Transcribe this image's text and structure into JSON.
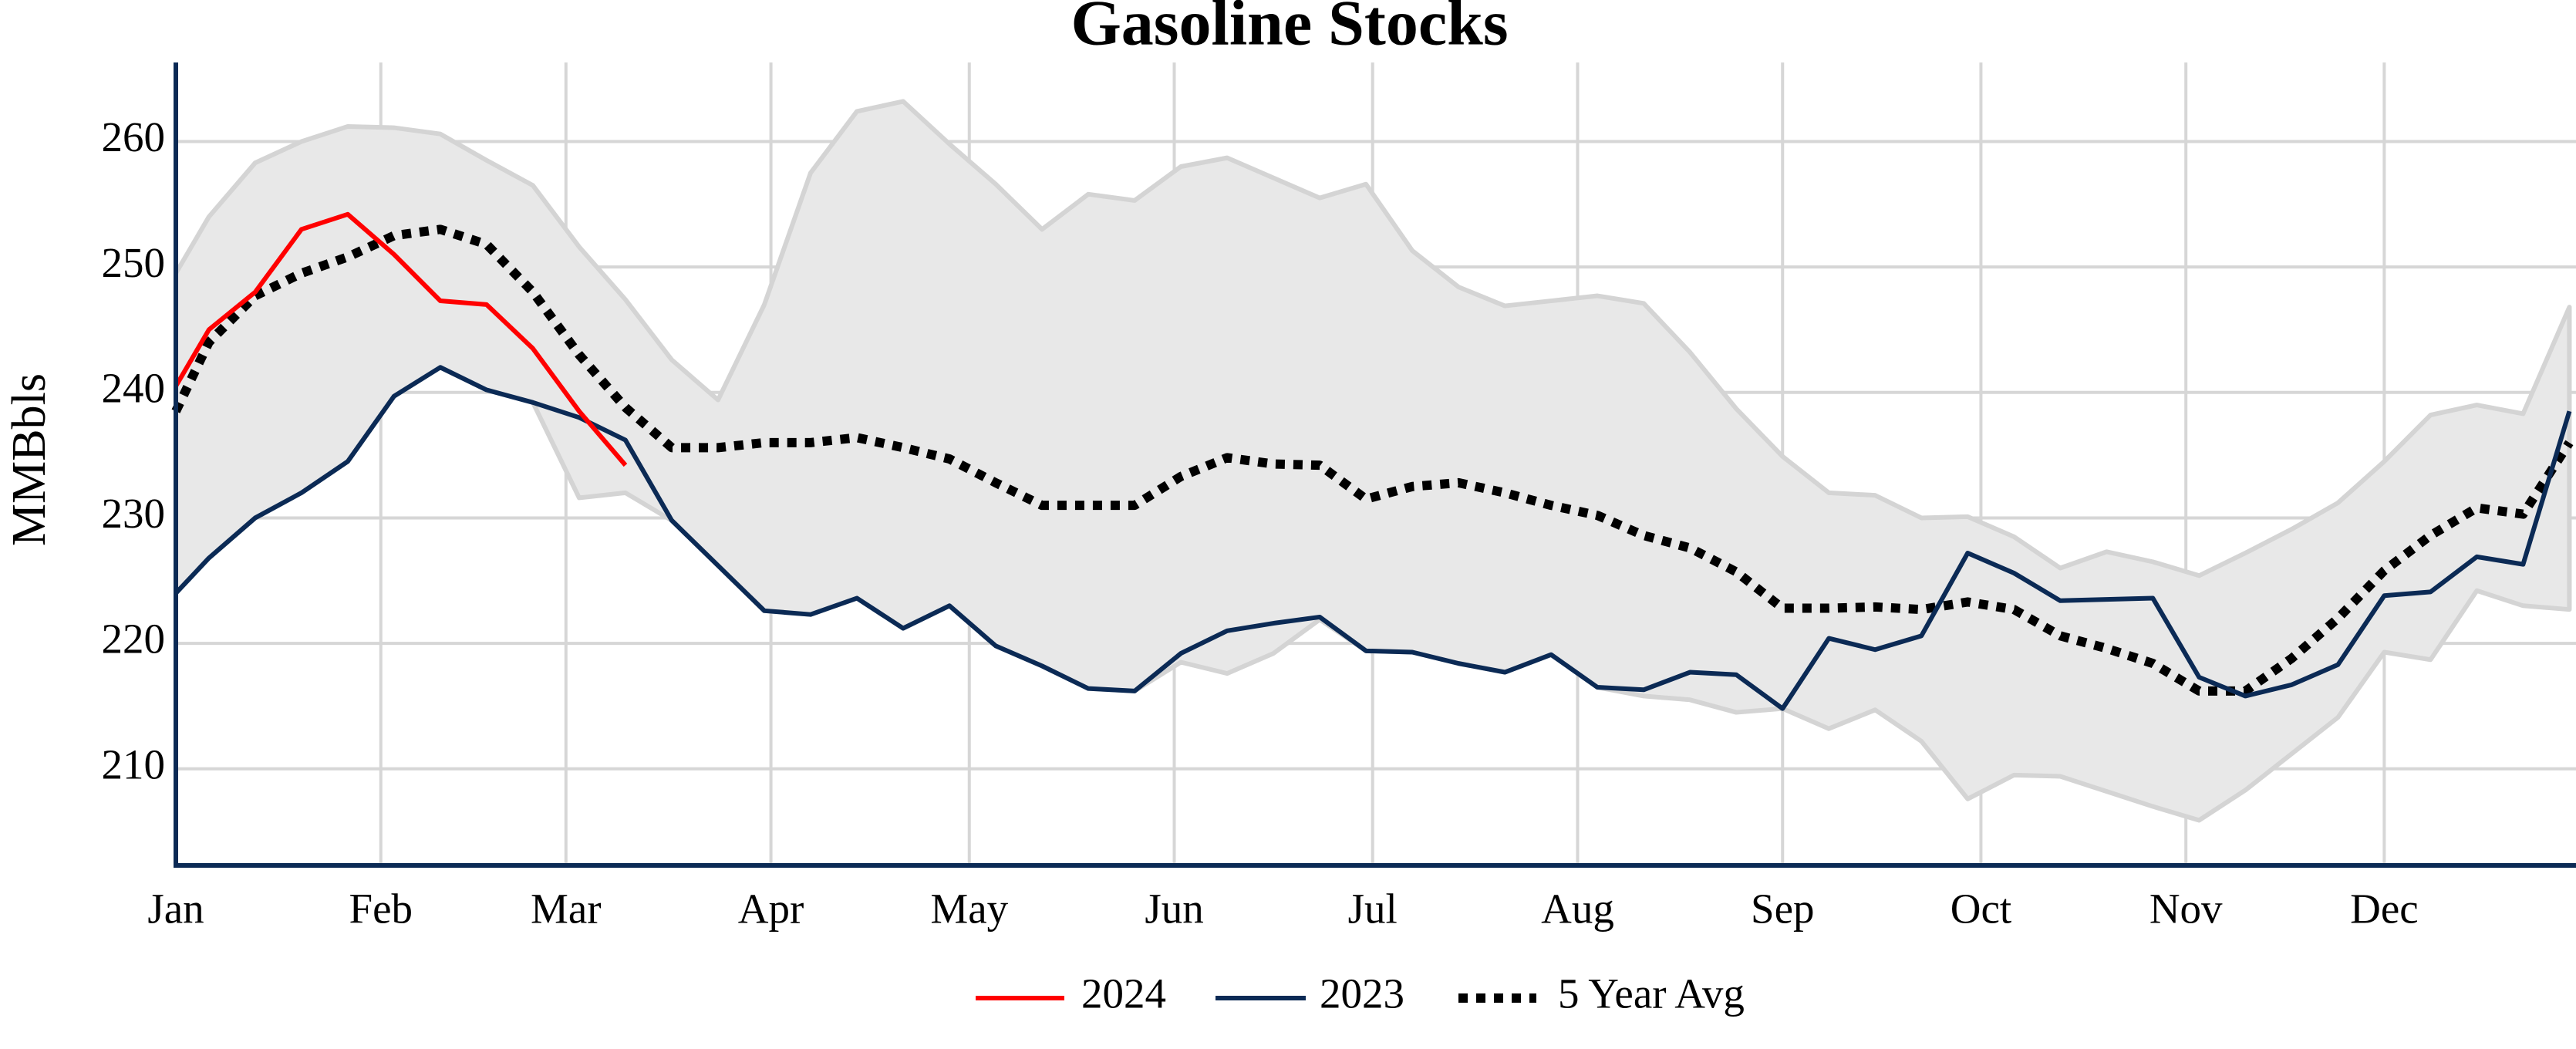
{
  "chart_data": {
    "type": "line",
    "title": "Gasoline Stocks",
    "y_label": "MMBbls",
    "x": [
      0,
      5,
      12,
      19,
      26,
      33,
      40,
      47,
      54,
      61,
      68,
      75,
      82,
      89,
      96,
      103,
      110,
      117,
      124,
      131,
      138,
      145,
      152,
      159,
      166,
      173,
      180,
      187,
      194,
      201,
      208,
      215,
      222,
      229,
      236,
      243,
      250,
      257,
      264,
      271,
      278,
      285,
      292,
      299,
      306,
      313,
      320,
      327,
      334,
      341,
      348,
      355,
      362
    ],
    "xlim": [
      0,
      363
    ],
    "xticks": [
      {
        "value": 0,
        "label": "Jan"
      },
      {
        "value": 31,
        "label": "Feb"
      },
      {
        "value": 59,
        "label": "Mar"
      },
      {
        "value": 90,
        "label": "Apr"
      },
      {
        "value": 120,
        "label": "May"
      },
      {
        "value": 151,
        "label": "Jun"
      },
      {
        "value": 181,
        "label": "Jul"
      },
      {
        "value": 212,
        "label": "Aug"
      },
      {
        "value": 243,
        "label": "Sep"
      },
      {
        "value": 273,
        "label": "Oct"
      },
      {
        "value": 304,
        "label": "Nov"
      },
      {
        "value": 334,
        "label": "Dec"
      }
    ],
    "ylim": [
      202.3,
      266.3
    ],
    "yticks": [
      210,
      220,
      230,
      240,
      250,
      260
    ],
    "grid": true,
    "band": {
      "color": "#e8e8e8",
      "edge_color": "#d4d4d4",
      "upper": [
        249.5,
        254,
        258.3,
        260,
        261.2,
        261.1,
        260.6,
        258.5,
        256.5,
        251.6,
        247.4,
        242.6,
        239.4,
        247,
        257.5,
        262.4,
        263.2,
        259.8,
        256.6,
        253,
        255.8,
        255.3,
        258,
        258.7,
        257.1,
        255.5,
        256.6,
        251.3,
        248.4,
        246.9,
        247.3,
        247.7,
        247.1,
        243.2,
        238.7,
        234.9,
        232,
        231.8,
        230,
        230.1,
        228.5,
        226,
        227.3,
        226.5,
        225.4,
        227.2,
        229.1,
        231.2,
        234.5,
        238.2,
        239,
        238.3,
        246.8
      ],
      "lower": [
        224,
        226.8,
        230,
        232,
        234.5,
        239.7,
        242,
        240.2,
        239.2,
        231.6,
        232,
        229.8,
        226.2,
        222.6,
        222.3,
        223.6,
        221.2,
        223,
        219.8,
        218.2,
        216.4,
        216.2,
        218.5,
        217.6,
        219.2,
        221.9,
        219.4,
        219.3,
        218.4,
        217.7,
        219.1,
        216.5,
        215.8,
        215.5,
        214.5,
        214.8,
        213.2,
        214.7,
        212.2,
        207.6,
        209.5,
        209.4,
        208.2,
        207,
        205.9,
        208.3,
        211.2,
        214.1,
        219.3,
        218.7,
        224.2,
        223,
        222.7
      ]
    },
    "series": [
      {
        "name": "2024",
        "color": "#ff0000",
        "style": "solid",
        "values": [
          240.5,
          245,
          248,
          253,
          254.2,
          251,
          247.3,
          247,
          243.5,
          238.5,
          234.2,
          null,
          null,
          null,
          null,
          null,
          null,
          null,
          null,
          null,
          null,
          null,
          null,
          null,
          null,
          null,
          null,
          null,
          null,
          null,
          null,
          null,
          null,
          null,
          null,
          null,
          null,
          null,
          null,
          null,
          null,
          null,
          null,
          null,
          null,
          null,
          null,
          null,
          null,
          null,
          null,
          null,
          null
        ]
      },
      {
        "name": "2023",
        "color": "#0b2a55",
        "style": "solid",
        "values": [
          224,
          226.8,
          230,
          232,
          234.5,
          239.7,
          242,
          240.2,
          239.2,
          238,
          236.2,
          229.8,
          226.2,
          222.6,
          222.3,
          223.6,
          221.2,
          223,
          219.8,
          218.2,
          216.4,
          216.2,
          219.2,
          221,
          221.6,
          222.1,
          219.4,
          219.3,
          218.4,
          217.7,
          219.1,
          216.5,
          216.3,
          217.7,
          217.5,
          214.8,
          220.4,
          219.5,
          220.6,
          227.2,
          225.6,
          223.4,
          223.5,
          223.6,
          217.3,
          215.8,
          216.7,
          218.3,
          223.8,
          224.1,
          226.9,
          226.3,
          238.5
        ]
      },
      {
        "name": "5 Year Avg",
        "color": "#000000",
        "style": "dotted",
        "values": [
          238.5,
          244,
          247.7,
          249.5,
          250.8,
          252.5,
          253,
          251.8,
          248,
          243,
          238.8,
          235.6,
          235.6,
          236,
          236,
          236.4,
          235.6,
          234.7,
          232.8,
          231,
          231,
          231,
          233.3,
          234.8,
          234.3,
          234.2,
          231.5,
          232.5,
          232.8,
          232,
          231,
          230.2,
          228.6,
          227.6,
          225.7,
          222.8,
          222.8,
          222.9,
          222.7,
          223.3,
          222.7,
          220.6,
          219.6,
          218.4,
          216.2,
          216.2,
          218.8,
          222,
          225.8,
          228.6,
          230.8,
          230.3,
          236
        ]
      }
    ]
  }
}
